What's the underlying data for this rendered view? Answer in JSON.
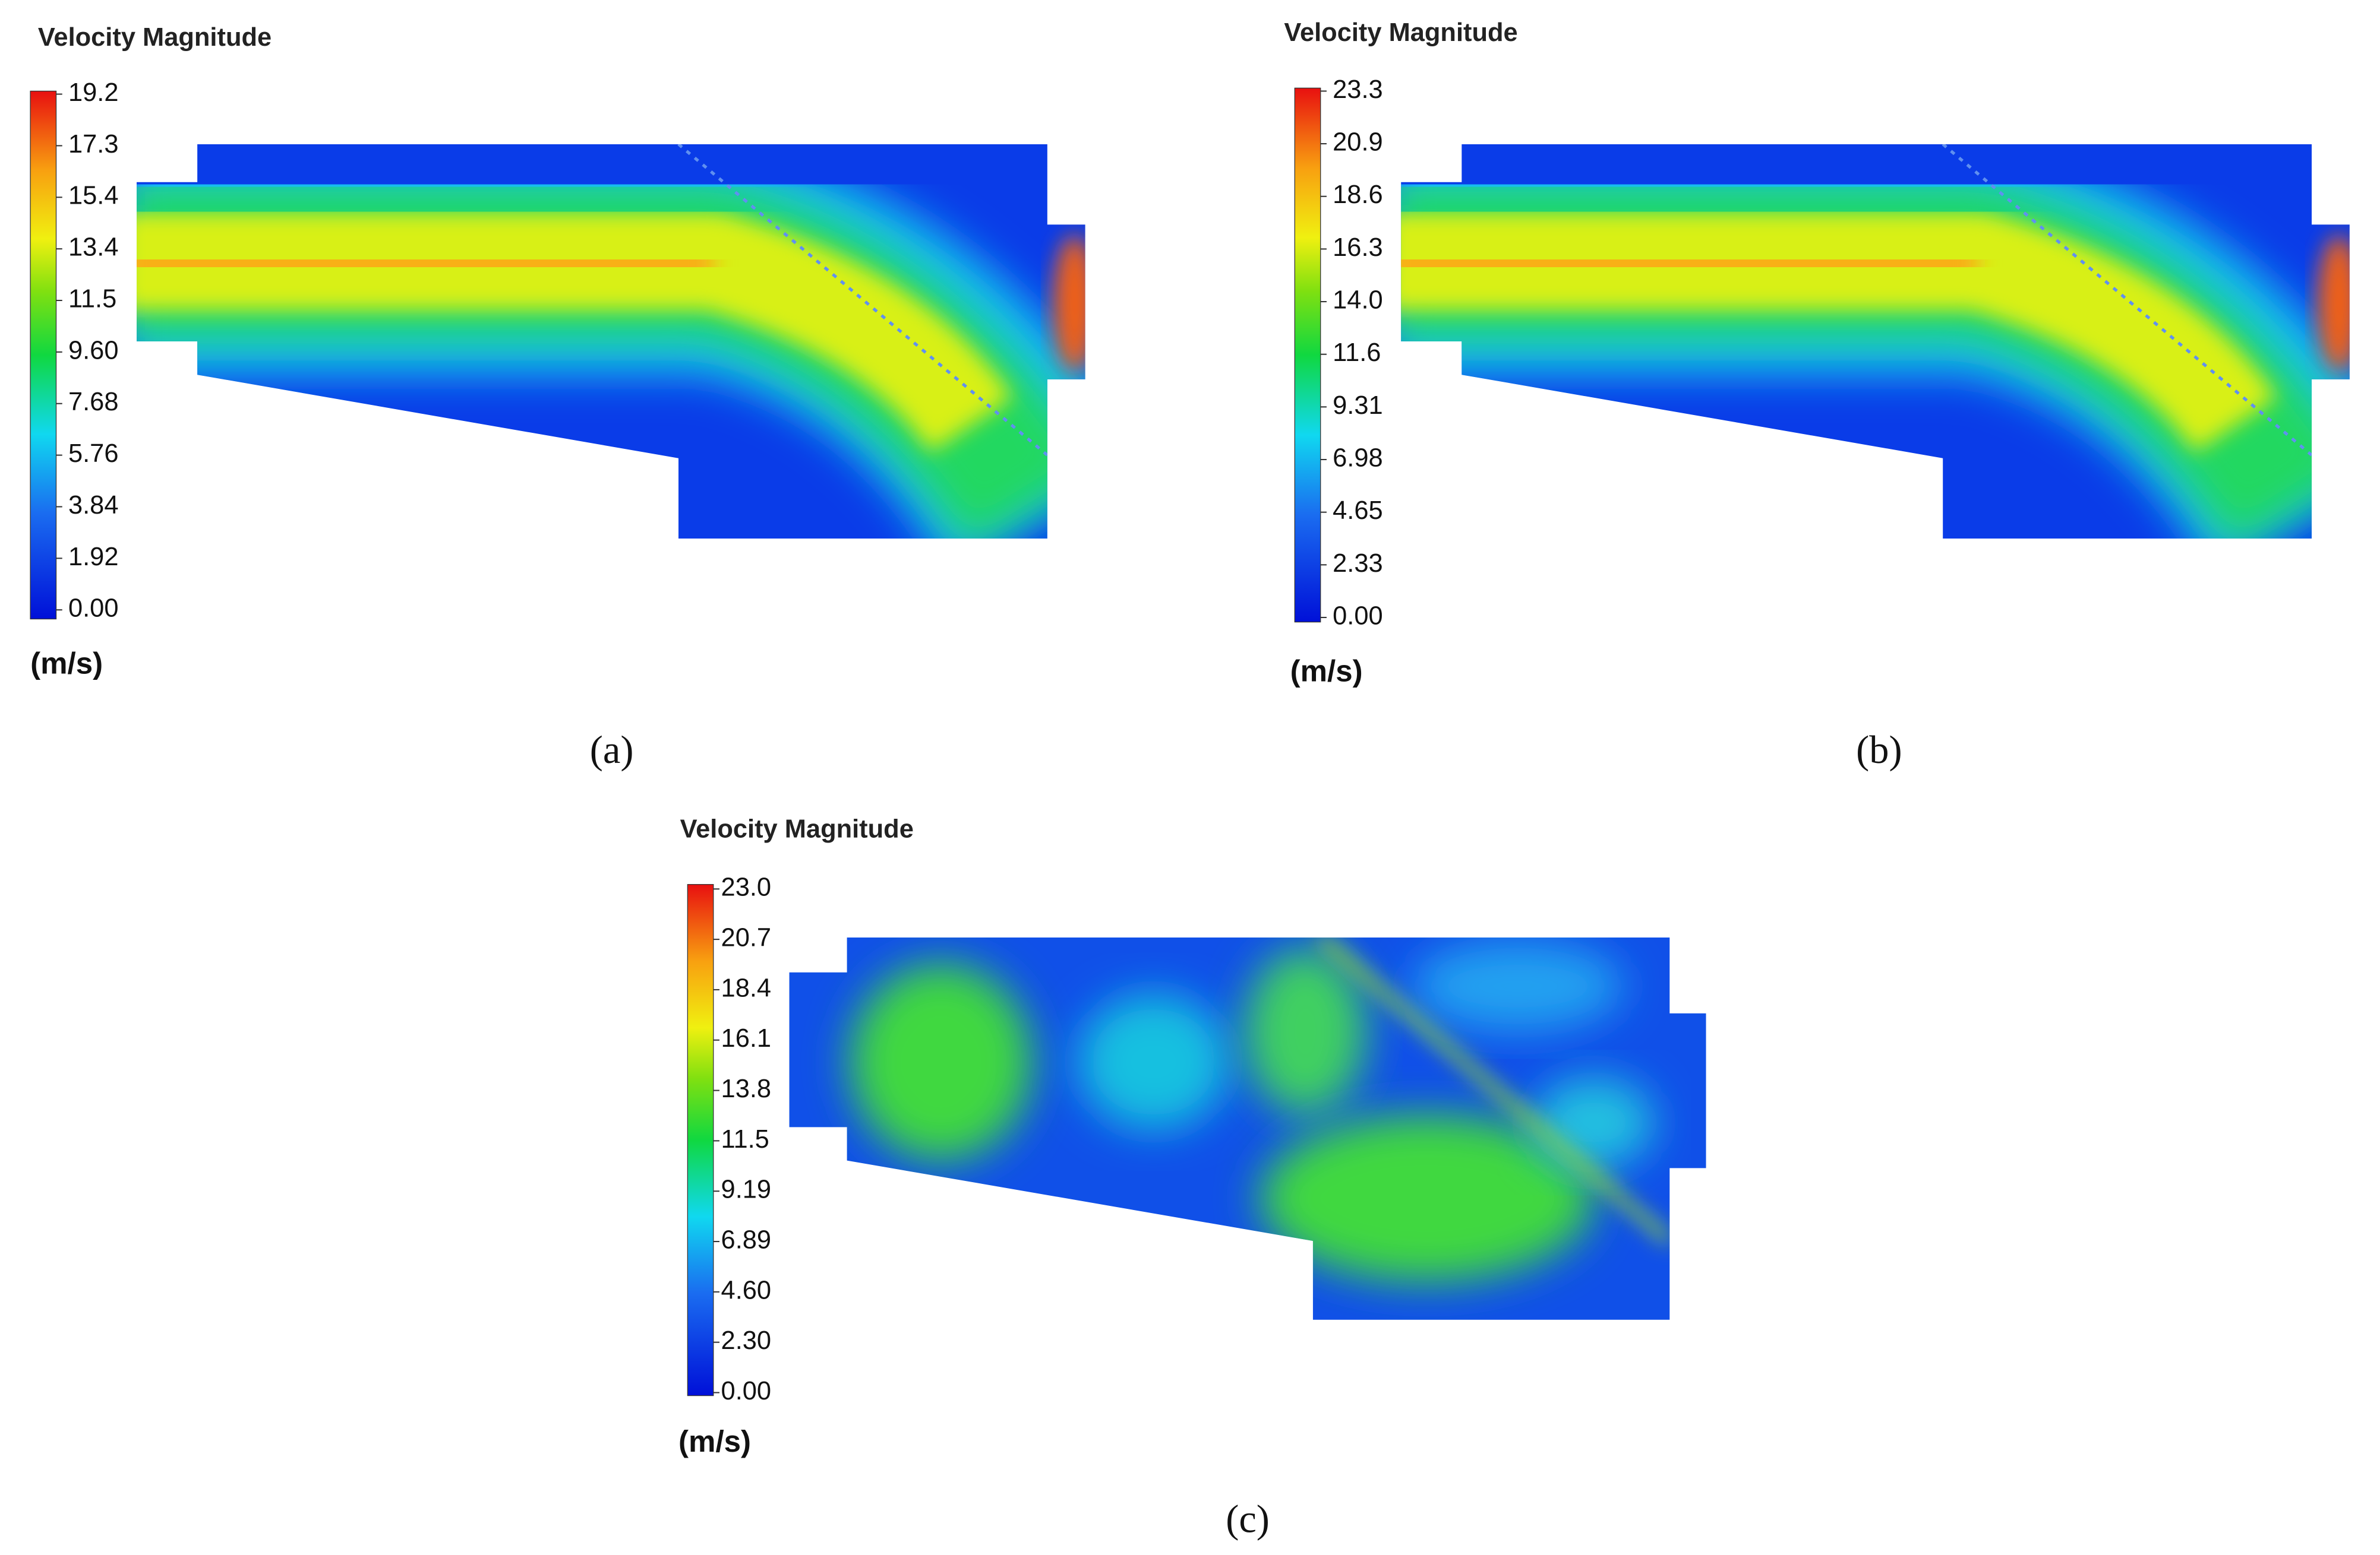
{
  "panels": [
    {
      "title": "Velocity Magnitude",
      "ticks": [
        "19.2",
        "17.3",
        "15.4",
        "13.4",
        "11.5",
        "9.60",
        "7.68",
        "5.76",
        "3.84",
        "1.92",
        "0.00"
      ],
      "unit": "(m/s)",
      "caption": "(a)"
    },
    {
      "title": "Velocity Magnitude",
      "ticks": [
        "23.3",
        "20.9",
        "18.6",
        "16.3",
        "14.0",
        "11.6",
        "9.31",
        "6.98",
        "4.65",
        "2.33",
        "0.00"
      ],
      "unit": "(m/s)",
      "caption": "(b)"
    },
    {
      "title": "Velocity Magnitude",
      "ticks": [
        "23.0",
        "20.7",
        "18.4",
        "16.1",
        "13.8",
        "11.5",
        "9.19",
        "6.89",
        "4.60",
        "2.30",
        "0.00"
      ],
      "unit": "(m/s)",
      "caption": "(c)"
    }
  ]
}
